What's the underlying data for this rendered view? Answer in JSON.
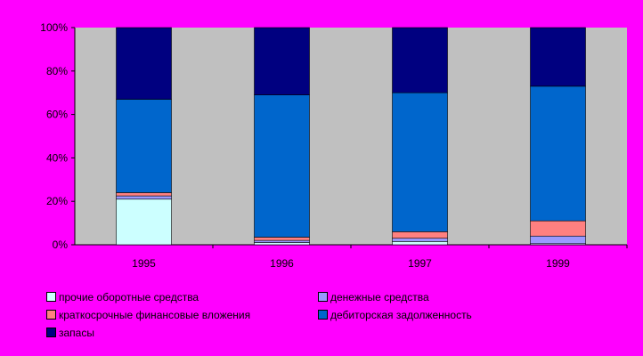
{
  "chart_data": {
    "type": "bar",
    "stacked": "percent",
    "categories": [
      "1995",
      "1996",
      "1997",
      "1999"
    ],
    "ylim": [
      0,
      100
    ],
    "yticks": [
      "0%",
      "20%",
      "40%",
      "60%",
      "80%",
      "100%"
    ],
    "grid": false,
    "legend_position": "bottom",
    "colors": {
      "background": "#ff00ff",
      "plot_area": "#c0c0c0"
    },
    "series": [
      {
        "name": "прочие оборотные средства",
        "color": "#ccffff",
        "values": [
          21,
          1,
          1.5,
          0.5
        ]
      },
      {
        "name": "денежные средства",
        "color": "#9999ff",
        "values": [
          1.5,
          1,
          1.5,
          3.5
        ]
      },
      {
        "name": "краткосрочные финансовые вложения",
        "color": "#ff8080",
        "values": [
          1.5,
          1.5,
          3,
          7
        ]
      },
      {
        "name": "дебиторская задолженность",
        "color": "#0066cc",
        "values": [
          43,
          65.5,
          64,
          62
        ]
      },
      {
        "name": "запасы",
        "color": "#000080",
        "values": [
          33,
          31,
          30,
          27
        ]
      }
    ]
  }
}
